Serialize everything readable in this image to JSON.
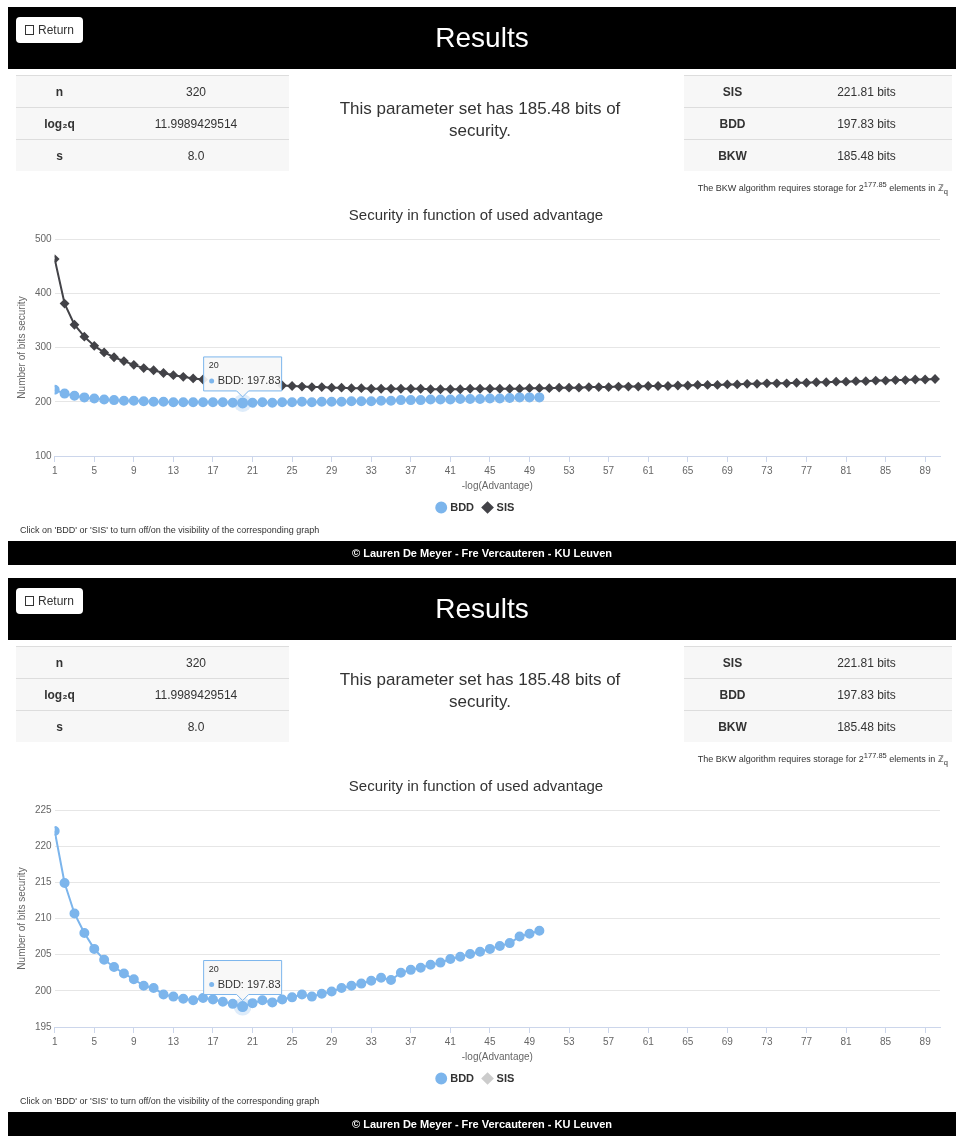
{
  "chart_data": [
    {
      "type": "other",
      "title": "Results",
      "annotations": [
        "Return",
        "n",
        "320",
        "log₂q",
        "11.9989429514",
        "s",
        "8.0",
        "This parameter set has 185.48 bits of security.",
        "SIS",
        "221.81 bits",
        "BDD",
        "197.83 bits",
        "BKW",
        "185.48 bits",
        "The BKW algorithm requires storage for 2$^{177.85}$ elements in ℤ$_{q}$"
      ]
    },
    {
      "type": "line",
      "title": "Security in function of used advantage",
      "xlabel": "-log(Advantage)",
      "ylabel": "Number of bits security",
      "xlim": [
        1,
        90.5
      ],
      "xticks": [
        1,
        5,
        9,
        13,
        17,
        21,
        25,
        29,
        33,
        37,
        41,
        45,
        49,
        53,
        57,
        61,
        65,
        69,
        73,
        77,
        81,
        85,
        89
      ],
      "ylim": [
        100,
        500
      ],
      "yticks": [
        100,
        200,
        300,
        400,
        500
      ],
      "grid": "y",
      "legend": "bottom",
      "series": [
        {
          "name": "BDD",
          "color": "#7cb5ec",
          "marker": "circle",
          "x": [
            1,
            2,
            3,
            4,
            5,
            6,
            7,
            8,
            9,
            10,
            11,
            12,
            13,
            14,
            15,
            16,
            17,
            18,
            19,
            20,
            21,
            22,
            23,
            24,
            25,
            26,
            27,
            28,
            29,
            30,
            31,
            32,
            33,
            34,
            35,
            36,
            37,
            38,
            39,
            40,
            41,
            42,
            43,
            44,
            45,
            46,
            47,
            48,
            49,
            50
          ],
          "values": [
            222,
            215,
            211,
            208,
            206,
            204,
            203,
            202,
            202,
            201,
            200,
            200,
            199,
            199,
            199,
            199,
            199,
            199,
            198,
            197.83,
            198,
            199,
            198,
            199,
            199,
            200,
            199,
            200,
            200,
            200,
            201,
            201,
            201,
            202,
            202,
            203,
            203,
            203,
            204,
            204,
            204,
            205,
            205,
            205,
            206,
            206,
            207,
            208,
            208,
            208
          ]
        },
        {
          "name": "SIS",
          "color": "#434348",
          "marker": "diamond",
          "x": [
            1,
            2,
            3,
            4,
            5,
            6,
            7,
            8,
            9,
            10,
            11,
            12,
            13,
            14,
            15,
            16,
            17,
            18,
            19,
            20,
            21,
            22,
            23,
            24,
            25,
            26,
            27,
            28,
            29,
            30,
            31,
            32,
            33,
            34,
            35,
            36,
            37,
            38,
            39,
            40,
            41,
            42,
            43,
            44,
            45,
            46,
            47,
            48,
            49,
            50,
            51,
            52,
            53,
            54,
            55,
            56,
            57,
            58,
            59,
            60,
            61,
            62,
            63,
            64,
            65,
            66,
            67,
            68,
            69,
            70,
            71,
            72,
            73,
            74,
            75,
            76,
            77,
            78,
            79,
            80,
            81,
            82,
            83,
            84,
            85,
            86,
            87,
            88,
            89,
            90
          ],
          "values": [
            463,
            381,
            342,
            320,
            303,
            291,
            282,
            275,
            268,
            262,
            258,
            253,
            249,
            246,
            243,
            241,
            null,
            null,
            null,
            null,
            null,
            null,
            null,
            230,
            229,
            228,
            227,
            227,
            226,
            226,
            225,
            225,
            224,
            224,
            224,
            224,
            224,
            224,
            223,
            223,
            223,
            223,
            224,
            224,
            224,
            224,
            224,
            224,
            225,
            225,
            225,
            226,
            226,
            226,
            227,
            227,
            227,
            228,
            228,
            228,
            229,
            229,
            229,
            230,
            230,
            231,
            231,
            231,
            232,
            232,
            233,
            233,
            234,
            234,
            234,
            235,
            235,
            236,
            236,
            237,
            237,
            238,
            238,
            239,
            239,
            240,
            240,
            241,
            241,
            242
          ]
        }
      ],
      "annotations": [
        {
          "text": "20\nBDD: 197.83",
          "x": 20,
          "y": 197.83
        },
        "Click on 'BDD' or 'SIS' to turn off/on the visibility of the corresponding graph",
        "© Lauren De Meyer - Fre Vercauteren - KU Leuven"
      ]
    },
    {
      "type": "other",
      "title": "Results",
      "annotations": [
        "Return",
        "n",
        "320",
        "log₂q",
        "11.9989429514",
        "s",
        "8.0",
        "This parameter set has 185.48 bits of security.",
        "SIS",
        "221.81 bits",
        "BDD",
        "197.83 bits",
        "BKW",
        "185.48 bits",
        "The BKW algorithm requires storage for 2$^{177.85}$ elements in ℤ$_{q}$"
      ]
    },
    {
      "type": "line",
      "title": "Security in function of used advantage",
      "xlabel": "-log(Advantage)",
      "ylabel": "Number of bits security",
      "xlim": [
        1,
        90.5
      ],
      "xticks": [
        1,
        5,
        9,
        13,
        17,
        21,
        25,
        29,
        33,
        37,
        41,
        45,
        49,
        53,
        57,
        61,
        65,
        69,
        73,
        77,
        81,
        85,
        89
      ],
      "ylim": [
        195,
        225
      ],
      "yticks": [
        195,
        200,
        205,
        210,
        215,
        220,
        225
      ],
      "grid": "y",
      "legend": "bottom",
      "series": [
        {
          "name": "BDD",
          "color": "#7cb5ec",
          "marker": "circle",
          "x": [
            1,
            2,
            3,
            4,
            5,
            6,
            7,
            8,
            9,
            10,
            11,
            12,
            13,
            14,
            15,
            16,
            17,
            18,
            19,
            20,
            21,
            22,
            23,
            24,
            25,
            26,
            27,
            28,
            29,
            30,
            31,
            32,
            33,
            34,
            35,
            36,
            37,
            38,
            39,
            40,
            41,
            42,
            43,
            44,
            45,
            46,
            47,
            48,
            49,
            50
          ],
          "values": [
            222.1,
            214.9,
            210.7,
            208.0,
            205.8,
            204.3,
            203.3,
            202.4,
            201.6,
            200.7,
            200.4,
            199.5,
            199.2,
            198.9,
            198.7,
            199.0,
            198.8,
            198.5,
            198.2,
            197.83,
            198.3,
            198.7,
            198.4,
            198.8,
            199.1,
            199.5,
            199.2,
            199.6,
            199.9,
            200.4,
            200.7,
            201.0,
            201.4,
            201.8,
            201.5,
            202.5,
            202.9,
            203.2,
            203.6,
            203.9,
            204.4,
            204.7,
            205.1,
            205.4,
            205.8,
            206.2,
            206.6,
            207.5,
            207.9,
            208.3
          ]
        },
        {
          "name": "SIS",
          "color": "#cccccc",
          "marker": "diamond"
        }
      ],
      "annotations": [
        {
          "text": "20\nBDD: 197.83",
          "x": 20,
          "y": 197.83
        },
        "Click on 'BDD' or 'SIS' to turn off/on the visibility of the corresponding graph",
        "© Lauren De Meyer - Fre Vercauteren - KU Leuven"
      ]
    }
  ]
}
